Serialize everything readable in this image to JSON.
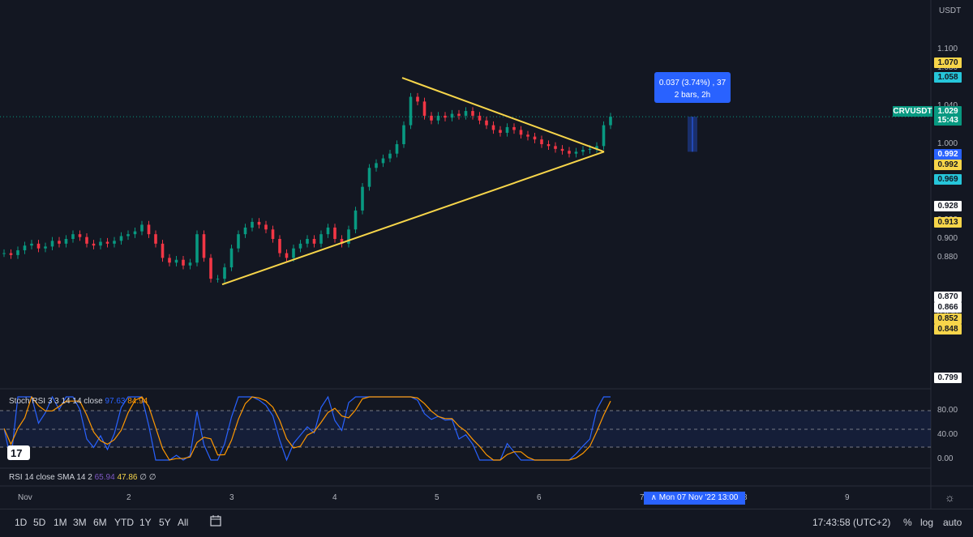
{
  "chart": {
    "currency": "USDT",
    "symbol_tag": "CRVUSDT",
    "price_ticks": [
      "1.100",
      "1.080",
      "1.040",
      "1.000",
      "0.960",
      "0.920",
      "0.900",
      "0.880",
      "0.820"
    ],
    "price_tags": [
      {
        "text": "1.070",
        "bg": "#f7d54a",
        "fg": "#131722"
      },
      {
        "text": "1.058",
        "bg": "#26c6da",
        "fg": "#131722"
      },
      {
        "text": "1.029",
        "bg": "#089981",
        "fg": "#ffffff"
      },
      {
        "text": "15:43",
        "bg": "#089981",
        "fg": "#ffffff"
      },
      {
        "text": "0.992",
        "bg": "#2962ff",
        "fg": "#ffffff"
      },
      {
        "text": "0.992",
        "bg": "#f7d54a",
        "fg": "#131722"
      },
      {
        "text": "0.969",
        "bg": "#26c6da",
        "fg": "#131722"
      },
      {
        "text": "0.928",
        "bg": "#ffffff",
        "fg": "#131722"
      },
      {
        "text": "0.913",
        "bg": "#f7d54a",
        "fg": "#131722"
      },
      {
        "text": "0.870",
        "bg": "#ffffff",
        "fg": "#131722"
      },
      {
        "text": "0.866",
        "bg": "#ffffff",
        "fg": "#131722"
      },
      {
        "text": "0.852",
        "bg": "#f7d54a",
        "fg": "#131722"
      },
      {
        "text": "0.848",
        "bg": "#f7d54a",
        "fg": "#131722"
      },
      {
        "text": "0.799",
        "bg": "#ffffff",
        "fg": "#131722"
      }
    ],
    "measure": {
      "line1": "0.037 (3.74%) , 37",
      "line2": "2 bars, 2h"
    },
    "time_ticks": [
      "Nov",
      "2",
      "3",
      "4",
      "5",
      "6",
      "7",
      "8",
      "9"
    ],
    "crosshair_time": "Mon 07 Nov '22   13:00"
  },
  "indicators": {
    "stoch": {
      "name": "Stoch RSI",
      "params": "3 3 14 14 close",
      "k": "97.63",
      "d": "84.94",
      "ticks": [
        "80.00",
        "40.00",
        "0.00"
      ]
    },
    "rsi": {
      "name": "RSI",
      "params": "14 close SMA 14 2",
      "v1": "65.94",
      "v2": "47.86",
      "v3": "∅",
      "v4": "∅"
    }
  },
  "toolbar": {
    "ranges": [
      "1D",
      "5D",
      "1M",
      "3M",
      "6M",
      "YTD",
      "1Y",
      "5Y",
      "All"
    ],
    "clock": "17:43:58 (UTC+2)",
    "percent": "%",
    "log": "log",
    "auto": "auto"
  },
  "chart_data": {
    "type": "candlestick",
    "x_label_ticks": [
      "Nov",
      "2",
      "3",
      "4",
      "5",
      "6",
      "7",
      "8",
      "9"
    ],
    "ylim": [
      0.79,
      1.11
    ],
    "close_series_approx": [
      0.885,
      0.883,
      0.888,
      0.893,
      0.895,
      0.89,
      0.892,
      0.898,
      0.895,
      0.9,
      0.905,
      0.902,
      0.895,
      0.893,
      0.897,
      0.895,
      0.898,
      0.903,
      0.905,
      0.908,
      0.915,
      0.905,
      0.895,
      0.88,
      0.875,
      0.878,
      0.872,
      0.875,
      0.905,
      0.88,
      0.858,
      0.858,
      0.87,
      0.89,
      0.905,
      0.912,
      0.918,
      0.915,
      0.91,
      0.9,
      0.885,
      0.88,
      0.89,
      0.895,
      0.9,
      0.895,
      0.905,
      0.912,
      0.9,
      0.895,
      0.91,
      0.93,
      0.955,
      0.975,
      0.98,
      0.985,
      0.99,
      1.0,
      1.02,
      1.05,
      1.045,
      1.03,
      1.025,
      1.03,
      1.028,
      1.032,
      1.03,
      1.035,
      1.03,
      1.025,
      1.02,
      1.015,
      1.012,
      1.018,
      1.015,
      1.01,
      1.008,
      1.005,
      1.0,
      0.998,
      0.995,
      0.993,
      0.99,
      0.992,
      0.994,
      0.995,
      0.998,
      1.02,
      1.029
    ],
    "annotations": {
      "triangle_apex_price": 0.992,
      "triangle_top": 1.07,
      "triangle_bottom": 0.852
    }
  }
}
